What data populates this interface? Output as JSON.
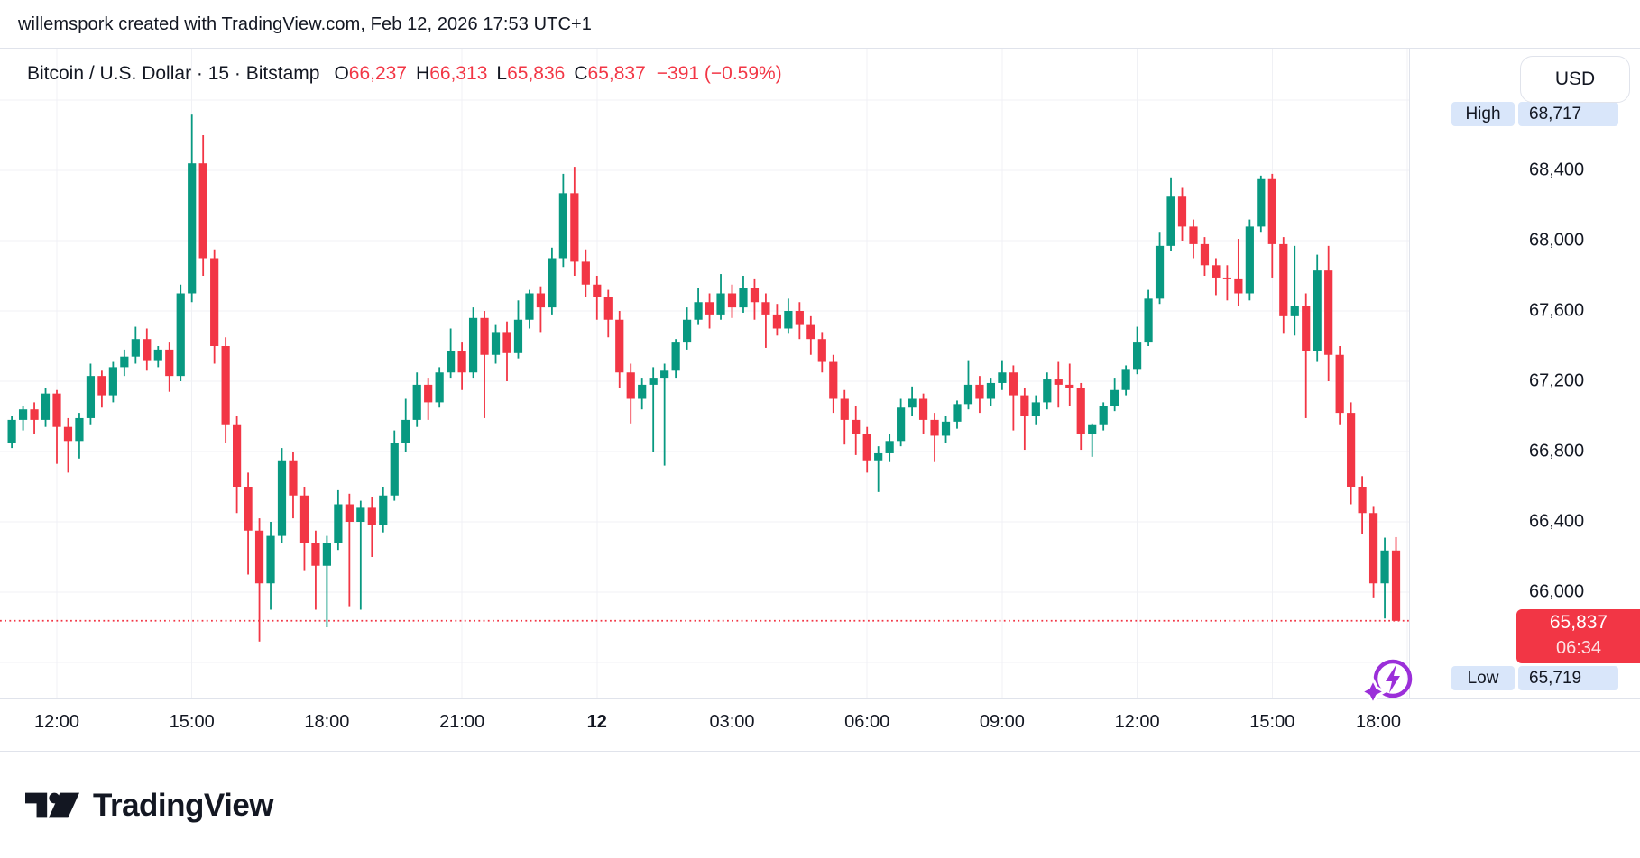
{
  "attribution": "willemspork created with TradingView.com, Feb 12, 2026 17:53 UTC+1",
  "legend": {
    "symbol_title": "Bitcoin / U.S. Dollar · 15 · Bitstamp",
    "ohlc": [
      {
        "label": "O",
        "value": "66,237"
      },
      {
        "label": "H",
        "value": "66,313"
      },
      {
        "label": "L",
        "value": "65,836"
      },
      {
        "label": "C",
        "value": "65,837"
      }
    ],
    "change": "−391 (−0.59%)"
  },
  "price_scale": {
    "currency_button": "USD",
    "high_marker": {
      "label": "High",
      "value": "68,717"
    },
    "low_marker": {
      "label": "Low",
      "value": "65,719"
    },
    "last_price_label": {
      "price": "65,837",
      "countdown": "06:34"
    }
  },
  "footer": {
    "logo_text": "TradingView",
    "logo_icon": "tradingview-mark-icon"
  },
  "colors": {
    "up": "#089981",
    "down": "#F23645",
    "grid": "#F0F1F5",
    "border": "#E0E3EB",
    "text": "#131722",
    "marker_pill_bg": "#D9E6FA",
    "price_line": "#F23645",
    "price_label_bg": "#F23645",
    "price_label_text": "#FFFFFF",
    "flash_icon_purple": "#9B2FD9"
  },
  "chart_data": {
    "type": "candlestick",
    "title": "Bitcoin / U.S. Dollar",
    "interval": "15",
    "exchange": "Bitstamp",
    "start_time": "Feb 11, 11:00",
    "interval_minutes": 15,
    "visible_range_high": 68717,
    "visible_range_low": 65719,
    "last_candle": {
      "open": 66237,
      "high": 66313,
      "low": 65836,
      "close": 65837,
      "change": -391,
      "change_pct": -0.59
    },
    "ylim": [
      65400,
      69100
    ],
    "y_ticks": [
      68400,
      68000,
      67600,
      67200,
      66800,
      66400,
      66000
    ],
    "grid_prices": [
      68800,
      68400,
      68000,
      67600,
      67200,
      66800,
      66400,
      66000,
      65600
    ],
    "x_ticks": [
      {
        "label": "12:00",
        "bold": false
      },
      {
        "label": "15:00",
        "bold": false
      },
      {
        "label": "18:00",
        "bold": false
      },
      {
        "label": "21:00",
        "bold": false
      },
      {
        "label": "12",
        "bold": true
      },
      {
        "label": "03:00",
        "bold": false
      },
      {
        "label": "06:00",
        "bold": false
      },
      {
        "label": "09:00",
        "bold": false
      },
      {
        "label": "12:00",
        "bold": false
      },
      {
        "label": "15:00",
        "bold": false
      },
      {
        "label": "18:00",
        "bold": false
      }
    ],
    "candles": [
      [
        66850,
        67000,
        66820,
        66980
      ],
      [
        66980,
        67060,
        66920,
        67040
      ],
      [
        67040,
        67080,
        66900,
        66980
      ],
      [
        66980,
        67160,
        66940,
        67130
      ],
      [
        67130,
        67150,
        66730,
        66940
      ],
      [
        66940,
        66990,
        66680,
        66860
      ],
      [
        66860,
        67020,
        66760,
        66990
      ],
      [
        66990,
        67300,
        66950,
        67230
      ],
      [
        67230,
        67260,
        67050,
        67120
      ],
      [
        67120,
        67310,
        67080,
        67280
      ],
      [
        67280,
        67380,
        67230,
        67340
      ],
      [
        67340,
        67510,
        67300,
        67440
      ],
      [
        67440,
        67500,
        67260,
        67320
      ],
      [
        67320,
        67400,
        67280,
        67380
      ],
      [
        67380,
        67420,
        67140,
        67230
      ],
      [
        67230,
        67750,
        67200,
        67700
      ],
      [
        67700,
        68717,
        67650,
        68440
      ],
      [
        68440,
        68600,
        67800,
        67900
      ],
      [
        67900,
        67950,
        67300,
        67400
      ],
      [
        67400,
        67450,
        66850,
        66950
      ],
      [
        66950,
        67000,
        66450,
        66600
      ],
      [
        66600,
        66680,
        66100,
        66350
      ],
      [
        66350,
        66420,
        65719,
        66050
      ],
      [
        66050,
        66400,
        65900,
        66320
      ],
      [
        66320,
        66820,
        66280,
        66750
      ],
      [
        66750,
        66800,
        66420,
        66550
      ],
      [
        66550,
        66600,
        66120,
        66280
      ],
      [
        66280,
        66350,
        65900,
        66150
      ],
      [
        66150,
        66320,
        65800,
        66280
      ],
      [
        66280,
        66580,
        66240,
        66500
      ],
      [
        66500,
        66560,
        65920,
        66400
      ],
      [
        66400,
        66520,
        65900,
        66480
      ],
      [
        66480,
        66540,
        66200,
        66380
      ],
      [
        66380,
        66600,
        66340,
        66550
      ],
      [
        66550,
        66920,
        66520,
        66850
      ],
      [
        66850,
        67100,
        66800,
        66980
      ],
      [
        66980,
        67250,
        66940,
        67180
      ],
      [
        67180,
        67220,
        66980,
        67080
      ],
      [
        67080,
        67280,
        67050,
        67250
      ],
      [
        67250,
        67500,
        67220,
        67370
      ],
      [
        67370,
        67420,
        67150,
        67250
      ],
      [
        67250,
        67620,
        67220,
        67560
      ],
      [
        67560,
        67600,
        66990,
        67350
      ],
      [
        67350,
        67520,
        67300,
        67480
      ],
      [
        67480,
        67540,
        67200,
        67360
      ],
      [
        67360,
        67660,
        67330,
        67550
      ],
      [
        67550,
        67720,
        67500,
        67700
      ],
      [
        67700,
        67740,
        67480,
        67620
      ],
      [
        67620,
        67960,
        67580,
        67900
      ],
      [
        67900,
        68380,
        67850,
        68270
      ],
      [
        68270,
        68420,
        67800,
        67880
      ],
      [
        67880,
        67950,
        67680,
        67750
      ],
      [
        67750,
        67800,
        67550,
        67680
      ],
      [
        67680,
        67720,
        67450,
        67550
      ],
      [
        67550,
        67600,
        67160,
        67250
      ],
      [
        67250,
        67300,
        66960,
        67100
      ],
      [
        67100,
        67220,
        67040,
        67180
      ],
      [
        67180,
        67280,
        66800,
        67220
      ],
      [
        67220,
        67300,
        66720,
        67260
      ],
      [
        67260,
        67440,
        67220,
        67420
      ],
      [
        67420,
        67620,
        67380,
        67550
      ],
      [
        67550,
        67730,
        67520,
        67650
      ],
      [
        67650,
        67700,
        67500,
        67580
      ],
      [
        67580,
        67810,
        67550,
        67700
      ],
      [
        67700,
        67750,
        67560,
        67620
      ],
      [
        67620,
        67800,
        67590,
        67730
      ],
      [
        67730,
        67780,
        67550,
        67650
      ],
      [
        67650,
        67700,
        67390,
        67580
      ],
      [
        67580,
        67640,
        67460,
        67500
      ],
      [
        67500,
        67670,
        67470,
        67600
      ],
      [
        67600,
        67650,
        67440,
        67520
      ],
      [
        67520,
        67570,
        67350,
        67440
      ],
      [
        67440,
        67480,
        67250,
        67310
      ],
      [
        67310,
        67350,
        67020,
        67100
      ],
      [
        67100,
        67150,
        66840,
        66980
      ],
      [
        66980,
        67060,
        66780,
        66900
      ],
      [
        66900,
        66940,
        66680,
        66750
      ],
      [
        66750,
        66830,
        66570,
        66790
      ],
      [
        66790,
        66900,
        66740,
        66860
      ],
      [
        66860,
        67100,
        66830,
        67050
      ],
      [
        67050,
        67170,
        67000,
        67100
      ],
      [
        67100,
        67130,
        66900,
        66980
      ],
      [
        66980,
        67020,
        66740,
        66890
      ],
      [
        66890,
        67000,
        66850,
        66970
      ],
      [
        66970,
        67090,
        66930,
        67070
      ],
      [
        67070,
        67320,
        67040,
        67180
      ],
      [
        67180,
        67230,
        67020,
        67100
      ],
      [
        67100,
        67220,
        67060,
        67190
      ],
      [
        67190,
        67320,
        67150,
        67250
      ],
      [
        67250,
        67290,
        66920,
        67120
      ],
      [
        67120,
        67160,
        66810,
        67000
      ],
      [
        67000,
        67120,
        66950,
        67080
      ],
      [
        67080,
        67250,
        67040,
        67210
      ],
      [
        67210,
        67310,
        67050,
        67180
      ],
      [
        67180,
        67300,
        67060,
        67160
      ],
      [
        67160,
        67190,
        66810,
        66900
      ],
      [
        66900,
        66960,
        66770,
        66950
      ],
      [
        66950,
        67080,
        66920,
        67060
      ],
      [
        67060,
        67220,
        67030,
        67150
      ],
      [
        67150,
        67290,
        67120,
        67270
      ],
      [
        67270,
        67510,
        67240,
        67420
      ],
      [
        67420,
        67720,
        67400,
        67670
      ],
      [
        67670,
        68050,
        67640,
        67970
      ],
      [
        67970,
        68360,
        67940,
        68250
      ],
      [
        68250,
        68300,
        68000,
        68080
      ],
      [
        68080,
        68120,
        67900,
        67980
      ],
      [
        67980,
        68020,
        67800,
        67860
      ],
      [
        67860,
        67900,
        67690,
        67790
      ],
      [
        67790,
        67860,
        67660,
        67780
      ],
      [
        67780,
        68010,
        67630,
        67700
      ],
      [
        67700,
        68120,
        67660,
        68080
      ],
      [
        68080,
        68370,
        68050,
        68350
      ],
      [
        68350,
        68380,
        67790,
        67980
      ],
      [
        67980,
        68020,
        67470,
        67570
      ],
      [
        67570,
        67970,
        67460,
        67630
      ],
      [
        67630,
        67700,
        66990,
        67370
      ],
      [
        67370,
        67920,
        67310,
        67830
      ],
      [
        67830,
        67970,
        67200,
        67350
      ],
      [
        67350,
        67400,
        66950,
        67020
      ],
      [
        67020,
        67080,
        66500,
        66600
      ],
      [
        66600,
        66660,
        66330,
        66450
      ],
      [
        66450,
        66490,
        65970,
        66050
      ],
      [
        66050,
        66310,
        65850,
        66237
      ],
      [
        66237,
        66313,
        65836,
        65837
      ]
    ]
  }
}
